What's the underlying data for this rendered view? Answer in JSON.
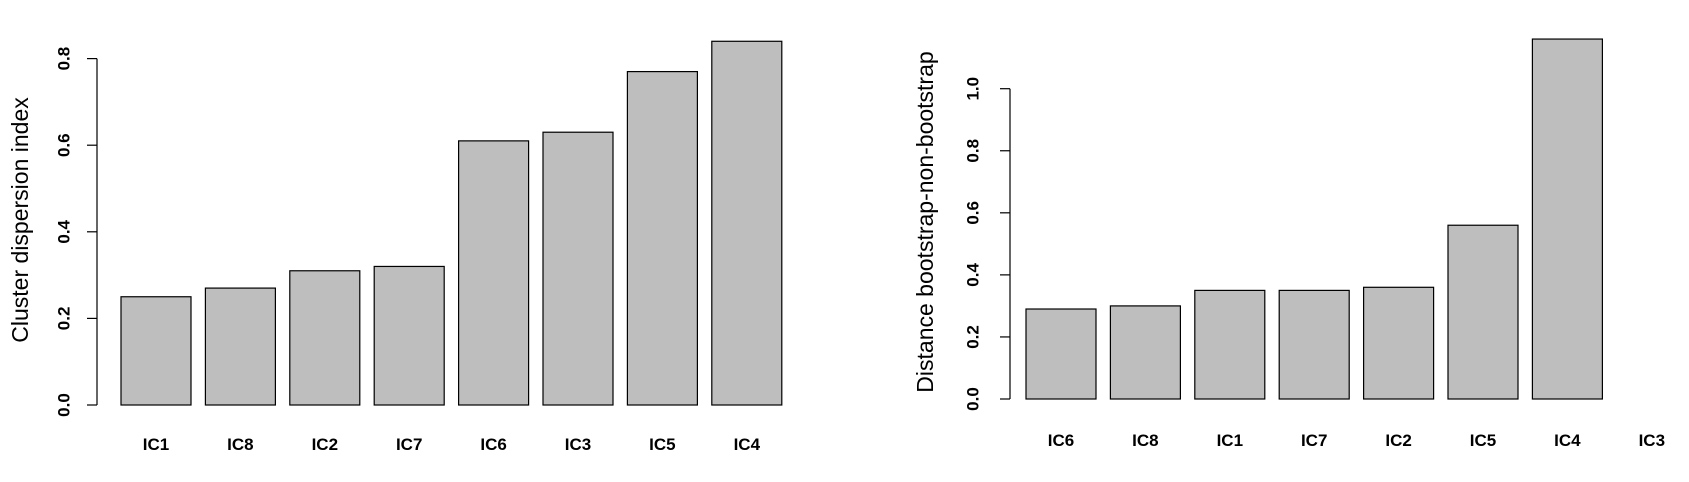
{
  "chart_data": [
    {
      "type": "bar",
      "title": "",
      "xlabel": "",
      "ylabel": "Cluster dispersion index",
      "categories": [
        "IC1",
        "IC8",
        "IC2",
        "IC7",
        "IC6",
        "IC3",
        "IC5",
        "IC4"
      ],
      "values": [
        0.25,
        0.27,
        0.31,
        0.32,
        0.61,
        0.63,
        0.77,
        0.84
      ],
      "yticks": [
        0.0,
        0.2,
        0.4,
        0.6,
        0.8
      ],
      "ytick_labels": [
        "0.0",
        "0.2",
        "0.4",
        "0.6",
        "0.8"
      ],
      "ylim": [
        0,
        0.84
      ],
      "bar_color": "#bebebe",
      "grid": false
    },
    {
      "type": "bar",
      "title": "",
      "xlabel": "",
      "ylabel": "Distance bootstrap-non-bootstrap",
      "categories": [
        "IC6",
        "IC8",
        "IC1",
        "IC7",
        "IC2",
        "IC5",
        "IC4",
        "IC3"
      ],
      "values": [
        0.29,
        0.3,
        0.35,
        0.35,
        0.36,
        0.56,
        1.16,
        null
      ],
      "yticks": [
        0.0,
        0.2,
        0.4,
        0.6,
        0.8,
        1.0
      ],
      "ytick_labels": [
        "0.0",
        "0.2",
        "0.4",
        "0.6",
        "0.8",
        "1.0"
      ],
      "ylim": [
        0,
        1.16
      ],
      "bar_color": "#bebebe",
      "grid": false
    }
  ]
}
